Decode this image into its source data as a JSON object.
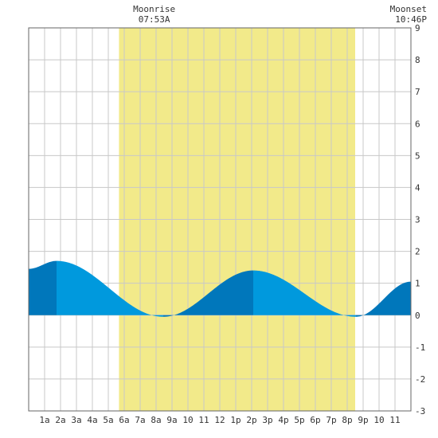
{
  "chart_data": {
    "type": "area",
    "moonrise": {
      "label": "Moonrise",
      "time": "07:53A",
      "hour": 7.883
    },
    "moonset": {
      "label": "Moonset",
      "time": "10:46P",
      "hour": 22.767
    },
    "x_tick_labels": [
      "1a",
      "2a",
      "3a",
      "4a",
      "5a",
      "6a",
      "7a",
      "8a",
      "9a",
      "10",
      "11",
      "12",
      "1p",
      "2p",
      "3p",
      "4p",
      "5p",
      "6p",
      "7p",
      "8p",
      "9p",
      "10",
      "11"
    ],
    "y_tick_labels": [
      "9",
      "8",
      "7",
      "6",
      "5",
      "4",
      "3",
      "2",
      "1",
      "0",
      "-1",
      "-2",
      "-3"
    ],
    "xlim": [
      0,
      24
    ],
    "ylim": [
      -3,
      9
    ],
    "daylight_band": [
      5.67,
      20.5
    ],
    "series": [
      {
        "x": [
          0,
          1.75,
          8.45,
          14.1,
          20.55,
          24
        ],
        "y": [
          1.45,
          1.7,
          -0.05,
          1.4,
          -0.05,
          1.05
        ]
      }
    ],
    "grid": true,
    "colors": {
      "daylight": "#f2ea8a",
      "tide_light": "#0099dd",
      "tide_dark": "#0077bb",
      "grid": "#c8c8c8",
      "border": "#666666"
    }
  }
}
